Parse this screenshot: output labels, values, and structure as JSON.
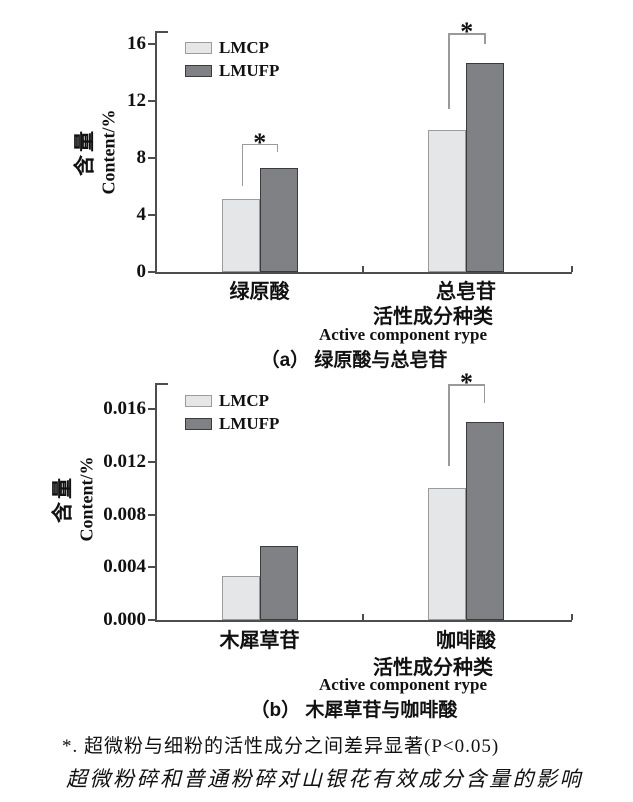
{
  "figure": {
    "footnote": "*. 超微粉与细粉的活性成分之间差异显著(P<0.05)",
    "caption": "超微粉碎和普通粉碎对山银花有效成分含量的影响"
  },
  "colors": {
    "axis": "#4d4d4d",
    "bracket": "#9a9a9a",
    "text": "#111111",
    "series": [
      {
        "name": "LMCP",
        "fill": "#e5e6e8",
        "border": "#9c9c9c"
      },
      {
        "name": "LMUFP",
        "fill": "#7f8184",
        "border": "#3a3a3a"
      }
    ]
  },
  "chart_data": [
    {
      "id": "a",
      "type": "bar",
      "title": "（a） 绿原酸与总皂苷",
      "ylabel_cn": "含量",
      "ylabel_en": "Content/%",
      "xlabel_cn": "活性成分种类",
      "xlabel_en": "Active component rype",
      "categories": [
        "绿原酸",
        "总皂苷"
      ],
      "series": [
        {
          "name": "LMCP",
          "values": [
            5.1,
            10.0
          ]
        },
        {
          "name": "LMUFP",
          "values": [
            7.3,
            14.7
          ]
        }
      ],
      "yticks": [
        0,
        4,
        8,
        12,
        16
      ],
      "ytick_labels": [
        "0",
        "4",
        "8",
        "12",
        "16"
      ],
      "ylim": [
        0,
        17
      ],
      "grid": false,
      "legend_position": "upper-left-inside",
      "significance": [
        {
          "category_index": 0,
          "label": "*"
        },
        {
          "category_index": 1,
          "label": "*"
        }
      ]
    },
    {
      "id": "b",
      "type": "bar",
      "title": "（b） 木犀草苷与咖啡酸",
      "ylabel_cn": "含量",
      "ylabel_en": "Content/%",
      "xlabel_cn": "活性成分种类",
      "xlabel_en": "Active component rype",
      "categories": [
        "木犀草苷",
        "咖啡酸"
      ],
      "series": [
        {
          "name": "LMCP",
          "values": [
            0.0033,
            0.01
          ]
        },
        {
          "name": "LMUFP",
          "values": [
            0.0056,
            0.015
          ]
        }
      ],
      "yticks": [
        0,
        0.004,
        0.008,
        0.012,
        0.016
      ],
      "ytick_labels": [
        "0.000",
        "0.004",
        "0.008",
        "0.012",
        "0.016"
      ],
      "ylim": [
        0,
        0.018
      ],
      "grid": false,
      "legend_position": "upper-left-inside",
      "significance": [
        {
          "category_index": 1,
          "label": "*"
        }
      ]
    }
  ]
}
